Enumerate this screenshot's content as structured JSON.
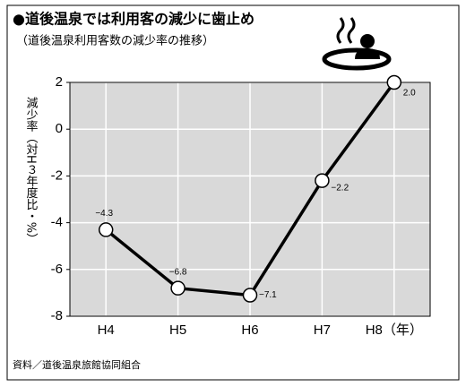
{
  "chart_data": {
    "type": "line",
    "title": "●道後温泉では利用客の減少に歯止め",
    "subtitle": "（道後温泉利用客数の減少率の推移）",
    "y_label": "減少率（対H３年度比・%）",
    "source": "資料／道後温泉旅館協同組合",
    "categories": [
      "H4",
      "H5",
      "H6",
      "H7",
      "H8（年）"
    ],
    "values": [
      -4.3,
      -6.8,
      -7.1,
      -2.2,
      2.0
    ],
    "value_labels": [
      "−4.3",
      "−6.8",
      "−7.1",
      "−2.2",
      "2.0"
    ],
    "color": "#000000",
    "ylim": [
      -8,
      2
    ],
    "yticks": [
      2,
      0,
      -2,
      -4,
      -6,
      -8
    ],
    "grid": true
  }
}
